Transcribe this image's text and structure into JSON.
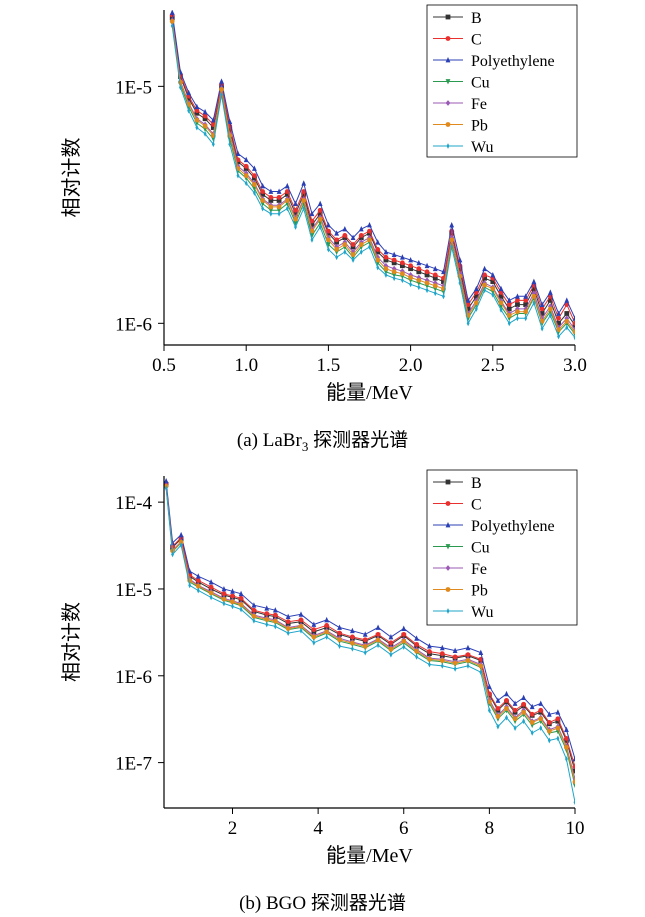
{
  "chart_data": [
    {
      "type": "line",
      "caption": "(a) LaBr",
      "caption_sub": "3",
      "caption_suffix": " 探测器光谱",
      "xlabel": "能量/MeV",
      "ylabel": "相对计数",
      "xlim": [
        0.5,
        3.0
      ],
      "ylim": [
        8.1e-07,
        2.1e-05
      ],
      "yscale": "log",
      "x_ticks": [
        "0.5",
        "1.0",
        "1.5",
        "2.0",
        "2.5",
        "3.0"
      ],
      "x_tick_values": [
        0.5,
        1.0,
        1.5,
        2.0,
        2.5,
        3.0
      ],
      "y_ticks": [
        "1E-6",
        "1E-5"
      ],
      "y_tick_values": [
        1e-06,
        1e-05
      ],
      "legend_position": "top-right",
      "x": [
        0.55,
        0.6,
        0.65,
        0.7,
        0.75,
        0.8,
        0.85,
        0.9,
        0.95,
        1.0,
        1.05,
        1.1,
        1.15,
        1.2,
        1.25,
        1.3,
        1.35,
        1.4,
        1.45,
        1.5,
        1.55,
        1.6,
        1.65,
        1.7,
        1.75,
        1.8,
        1.85,
        1.9,
        1.95,
        2.0,
        2.05,
        2.1,
        2.15,
        2.2,
        2.25,
        2.3,
        2.35,
        2.4,
        2.45,
        2.5,
        2.55,
        2.6,
        2.65,
        2.7,
        2.75,
        2.8,
        2.85,
        2.9,
        2.95,
        3.0
      ],
      "series": [
        {
          "name": "B",
          "color": "#333333",
          "marker": "square",
          "values": [
            1.95e-05,
            1.1e-05,
            8.9e-06,
            7.7e-06,
            7.3e-06,
            6.7e-06,
            1e-05,
            6.6e-06,
            4.8e-06,
            4.5e-06,
            4.1e-06,
            3.5e-06,
            3.3e-06,
            3.3e-06,
            3.5e-06,
            2.9e-06,
            3.5e-06,
            2.6e-06,
            2.9e-06,
            2.4e-06,
            2.2e-06,
            2.3e-06,
            2.1e-06,
            2.3e-06,
            2.4e-06,
            2e-06,
            1.85e-06,
            1.8e-06,
            1.75e-06,
            1.7e-06,
            1.65e-06,
            1.6e-06,
            1.55e-06,
            1.5e-06,
            2.4e-06,
            1.7e-06,
            1.15e-06,
            1.3e-06,
            1.55e-06,
            1.5e-06,
            1.3e-06,
            1.15e-06,
            1.2e-06,
            1.2e-06,
            1.4e-06,
            1.1e-06,
            1.25e-06,
            1e-06,
            1.1e-06,
            9.8e-07
          ]
        },
        {
          "name": "C",
          "color": "#e8312f",
          "marker": "circle",
          "values": [
            2e-05,
            1.12e-05,
            9.1e-06,
            7.9e-06,
            7.5e-06,
            6.9e-06,
            1.02e-05,
            6.8e-06,
            4.9e-06,
            4.6e-06,
            4.2e-06,
            3.6e-06,
            3.4e-06,
            3.4e-06,
            3.6e-06,
            3e-06,
            3.6e-06,
            2.7e-06,
            3e-06,
            2.45e-06,
            2.25e-06,
            2.35e-06,
            2.15e-06,
            2.35e-06,
            2.45e-06,
            2.05e-06,
            1.9e-06,
            1.85e-06,
            1.8e-06,
            1.75e-06,
            1.7e-06,
            1.65e-06,
            1.6e-06,
            1.55e-06,
            2.45e-06,
            1.75e-06,
            1.2e-06,
            1.35e-06,
            1.6e-06,
            1.55e-06,
            1.35e-06,
            1.2e-06,
            1.25e-06,
            1.25e-06,
            1.45e-06,
            1.15e-06,
            1.3e-06,
            1.05e-06,
            1.2e-06,
            1e-06
          ]
        },
        {
          "name": "Polyethylene",
          "color": "#2b3fb5",
          "marker": "triangle-up",
          "values": [
            2.05e-05,
            1.15e-05,
            9.4e-06,
            8.2e-06,
            7.8e-06,
            7.2e-06,
            1.05e-05,
            7.1e-06,
            5.2e-06,
            4.9e-06,
            4.5e-06,
            3.8e-06,
            3.6e-06,
            3.6e-06,
            3.8e-06,
            3.2e-06,
            3.9e-06,
            2.9e-06,
            3.2e-06,
            2.6e-06,
            2.4e-06,
            2.5e-06,
            2.3e-06,
            2.5e-06,
            2.6e-06,
            2.2e-06,
            2e-06,
            1.95e-06,
            1.9e-06,
            1.85e-06,
            1.8e-06,
            1.75e-06,
            1.7e-06,
            1.65e-06,
            2.6e-06,
            1.85e-06,
            1.25e-06,
            1.4e-06,
            1.7e-06,
            1.6e-06,
            1.4e-06,
            1.25e-06,
            1.3e-06,
            1.3e-06,
            1.5e-06,
            1.2e-06,
            1.35e-06,
            1.1e-06,
            1.25e-06,
            1.05e-06
          ]
        },
        {
          "name": "Cu",
          "color": "#2a9a50",
          "marker": "triangle-down",
          "values": [
            1.85e-05,
            1.02e-05,
            8.2e-06,
            7e-06,
            6.6e-06,
            6e-06,
            9.5e-06,
            6e-06,
            4.4e-06,
            4.1e-06,
            3.7e-06,
            3.2e-06,
            3e-06,
            3e-06,
            3.2e-06,
            2.65e-06,
            3.2e-06,
            2.35e-06,
            2.65e-06,
            2.15e-06,
            2e-06,
            2.1e-06,
            1.9e-06,
            2.1e-06,
            2.2e-06,
            1.8e-06,
            1.65e-06,
            1.6e-06,
            1.58e-06,
            1.52e-06,
            1.48e-06,
            1.44e-06,
            1.4e-06,
            1.36e-06,
            2.2e-06,
            1.55e-06,
            1.05e-06,
            1.2e-06,
            1.42e-06,
            1.36e-06,
            1.18e-06,
            1.05e-06,
            1.1e-06,
            1.1e-06,
            1.28e-06,
            1e-06,
            1.12e-06,
            9.2e-07,
            1e-06,
            9e-07
          ]
        },
        {
          "name": "Fe",
          "color": "#9b59b6",
          "marker": "diamond",
          "values": [
            1.9e-05,
            1.05e-05,
            8.5e-06,
            7.3e-06,
            6.9e-06,
            6.3e-06,
            9.8e-06,
            6.3e-06,
            4.6e-06,
            4.3e-06,
            3.9e-06,
            3.35e-06,
            3.15e-06,
            3.15e-06,
            3.35e-06,
            2.8e-06,
            3.35e-06,
            2.5e-06,
            2.8e-06,
            2.3e-06,
            2.1e-06,
            2.2e-06,
            2e-06,
            2.2e-06,
            2.3e-06,
            1.9e-06,
            1.75e-06,
            1.7e-06,
            1.66e-06,
            1.6e-06,
            1.56e-06,
            1.52e-06,
            1.48e-06,
            1.44e-06,
            2.3e-06,
            1.62e-06,
            1.1e-06,
            1.25e-06,
            1.48e-06,
            1.42e-06,
            1.24e-06,
            1.1e-06,
            1.15e-06,
            1.15e-06,
            1.34e-06,
            1.05e-06,
            1.18e-06,
            9.6e-07,
            1.05e-06,
            9.4e-07
          ]
        },
        {
          "name": "Pb",
          "color": "#e08a1e",
          "marker": "hexagon",
          "values": [
            1.88e-05,
            1.04e-05,
            8.4e-06,
            7.2e-06,
            6.8e-06,
            6.2e-06,
            9.7e-06,
            6.2e-06,
            4.5e-06,
            4.2e-06,
            3.85e-06,
            3.3e-06,
            3.1e-06,
            3.1e-06,
            3.3e-06,
            2.75e-06,
            3.3e-06,
            2.45e-06,
            2.75e-06,
            2.25e-06,
            2.05e-06,
            2.15e-06,
            1.95e-06,
            2.15e-06,
            2.25e-06,
            1.85e-06,
            1.7e-06,
            1.65e-06,
            1.62e-06,
            1.56e-06,
            1.52e-06,
            1.48e-06,
            1.44e-06,
            1.4e-06,
            2.25e-06,
            1.58e-06,
            1.08e-06,
            1.22e-06,
            1.45e-06,
            1.4e-06,
            1.22e-06,
            1.08e-06,
            1.12e-06,
            1.12e-06,
            1.3e-06,
            1.02e-06,
            1.15e-06,
            9.4e-07,
            1.02e-06,
            9.2e-07
          ]
        },
        {
          "name": "Wu",
          "color": "#1ea5c9",
          "marker": "star",
          "values": [
            1.8e-05,
            9.9e-06,
            7.9e-06,
            6.7e-06,
            6.3e-06,
            5.7e-06,
            9.2e-06,
            5.7e-06,
            4.2e-06,
            3.9e-06,
            3.55e-06,
            3.05e-06,
            2.9e-06,
            2.9e-06,
            3.05e-06,
            2.55e-06,
            3.05e-06,
            2.25e-06,
            2.55e-06,
            2.05e-06,
            1.9e-06,
            2e-06,
            1.85e-06,
            2e-06,
            2.1e-06,
            1.72e-06,
            1.6e-06,
            1.55e-06,
            1.52e-06,
            1.46e-06,
            1.42e-06,
            1.38e-06,
            1.34e-06,
            1.3e-06,
            2.1e-06,
            1.48e-06,
            1e-06,
            1.15e-06,
            1.38e-06,
            1.32e-06,
            1.14e-06,
            1e-06,
            1.05e-06,
            1.05e-06,
            1.22e-06,
            9.5e-07,
            1.08e-06,
            8.8e-07,
            9.6e-07,
            8.7e-07
          ]
        }
      ]
    },
    {
      "type": "line",
      "caption": "(b) BGO 探测器光谱",
      "xlabel": "能量/MeV",
      "ylabel": "相对计数",
      "xlim": [
        0.4,
        10.0
      ],
      "ylim": [
        3e-08,
        0.0002
      ],
      "yscale": "log",
      "x_ticks": [
        "2",
        "4",
        "6",
        "8",
        "10"
      ],
      "x_tick_values": [
        2,
        4,
        6,
        8,
        10
      ],
      "y_ticks": [
        "1E-7",
        "1E-6",
        "1E-5",
        "1E-4"
      ],
      "y_tick_values": [
        1e-07,
        1e-06,
        1e-05,
        0.0001
      ],
      "legend_position": "top-right",
      "x": [
        0.45,
        0.6,
        0.8,
        1.0,
        1.2,
        1.5,
        1.8,
        2.0,
        2.2,
        2.5,
        2.8,
        3.0,
        3.3,
        3.6,
        3.9,
        4.2,
        4.5,
        4.8,
        5.1,
        5.4,
        5.7,
        6.0,
        6.3,
        6.6,
        6.9,
        7.2,
        7.5,
        7.8,
        8.0,
        8.2,
        8.4,
        8.6,
        8.8,
        9.0,
        9.2,
        9.4,
        9.6,
        9.8,
        10.0
      ],
      "series": [
        {
          "name": "B",
          "color": "#333333",
          "marker": "square",
          "values": [
            0.00016,
            3e-05,
            3.8e-05,
            1.4e-05,
            1.2e-05,
            1e-05,
            8.5e-06,
            8e-06,
            7.5e-06,
            5.5e-06,
            5e-06,
            4.8e-06,
            4e-06,
            4.2e-06,
            3.2e-06,
            3.6e-06,
            3e-06,
            2.7e-06,
            2.5e-06,
            2.9e-06,
            2.3e-06,
            2.9e-06,
            2.2e-06,
            1.8e-06,
            1.7e-06,
            1.6e-06,
            1.7e-06,
            1.5e-06,
            6e-07,
            4e-07,
            5e-07,
            3.8e-07,
            4.5e-07,
            3.5e-07,
            3.8e-07,
            2.8e-07,
            3e-07,
            1.8e-07,
            8e-08
          ]
        },
        {
          "name": "C",
          "color": "#e8312f",
          "marker": "circle",
          "values": [
            0.000165,
            3.1e-05,
            3.9e-05,
            1.45e-05,
            1.25e-05,
            1.05e-05,
            8.8e-06,
            8.3e-06,
            7.8e-06,
            5.7e-06,
            5.2e-06,
            5e-06,
            4.2e-06,
            4.4e-06,
            3.4e-06,
            3.8e-06,
            3.1e-06,
            2.8e-06,
            2.6e-06,
            3e-06,
            2.4e-06,
            3e-06,
            2.3e-06,
            1.9e-06,
            1.8e-06,
            1.65e-06,
            1.75e-06,
            1.55e-06,
            6.2e-07,
            4.2e-07,
            5.2e-07,
            4e-07,
            4.7e-07,
            3.6e-07,
            4e-07,
            2.9e-07,
            3.2e-07,
            1.9e-07,
            9e-08
          ]
        },
        {
          "name": "Polyethylene",
          "color": "#2b3fb5",
          "marker": "triangle-up",
          "values": [
            0.000175,
            3.4e-05,
            4.2e-05,
            1.6e-05,
            1.4e-05,
            1.2e-05,
            1e-05,
            9.4e-06,
            8.8e-06,
            6.5e-06,
            6e-06,
            5.7e-06,
            4.8e-06,
            5.1e-06,
            3.9e-06,
            4.4e-06,
            3.6e-06,
            3.3e-06,
            3e-06,
            3.6e-06,
            2.8e-06,
            3.5e-06,
            2.7e-06,
            2.2e-06,
            2.1e-06,
            1.95e-06,
            2.1e-06,
            1.85e-06,
            7.5e-07,
            5.2e-07,
            6.2e-07,
            4.8e-07,
            5.6e-07,
            4.4e-07,
            4.8e-07,
            3.6e-07,
            3.8e-07,
            2.4e-07,
            1.1e-07
          ]
        },
        {
          "name": "Cu",
          "color": "#2a9a50",
          "marker": "triangle-down",
          "values": [
            0.00015,
            2.7e-05,
            3.4e-05,
            1.2e-05,
            1.05e-05,
            8.8e-06,
            7.4e-06,
            6.9e-06,
            6.4e-06,
            4.7e-06,
            4.3e-06,
            4.1e-06,
            3.4e-06,
            3.6e-06,
            2.7e-06,
            3.1e-06,
            2.5e-06,
            2.3e-06,
            2.1e-06,
            2.5e-06,
            1.95e-06,
            2.4e-06,
            1.85e-06,
            1.5e-06,
            1.45e-06,
            1.35e-06,
            1.45e-06,
            1.25e-06,
            4.8e-07,
            3.2e-07,
            4e-07,
            3e-07,
            3.6e-07,
            2.7e-07,
            3e-07,
            2.2e-07,
            2.3e-07,
            1.4e-07,
            5.5e-08
          ]
        },
        {
          "name": "Fe",
          "color": "#9b59b6",
          "marker": "diamond",
          "values": [
            0.000155,
            2.8e-05,
            3.5e-05,
            1.3e-05,
            1.1e-05,
            9.3e-06,
            7.8e-06,
            7.3e-06,
            6.8e-06,
            5e-06,
            4.6e-06,
            4.4e-06,
            3.6e-06,
            3.8e-06,
            2.9e-06,
            3.3e-06,
            2.7e-06,
            2.45e-06,
            2.25e-06,
            2.65e-06,
            2.1e-06,
            2.6e-06,
            2e-06,
            1.6e-06,
            1.55e-06,
            1.45e-06,
            1.55e-06,
            1.35e-06,
            5.3e-07,
            3.5e-07,
            4.4e-07,
            3.3e-07,
            4e-07,
            3e-07,
            3.3e-07,
            2.4e-07,
            2.6e-07,
            1.55e-07,
            6.5e-08
          ]
        },
        {
          "name": "Pb",
          "color": "#e08a1e",
          "marker": "hexagon",
          "values": [
            0.000152,
            2.75e-05,
            3.45e-05,
            1.25e-05,
            1.08e-05,
            9e-06,
            7.6e-06,
            7.1e-06,
            6.6e-06,
            4.85e-06,
            4.45e-06,
            4.25e-06,
            3.5e-06,
            3.7e-06,
            2.8e-06,
            3.2e-06,
            2.6e-06,
            2.38e-06,
            2.18e-06,
            2.58e-06,
            2.02e-06,
            2.5e-06,
            1.92e-06,
            1.55e-06,
            1.5e-06,
            1.4e-06,
            1.5e-06,
            1.3e-06,
            5e-07,
            3.4e-07,
            4.2e-07,
            3.2e-07,
            3.8e-07,
            2.9e-07,
            3.2e-07,
            2.3e-07,
            2.5e-07,
            1.5e-07,
            6e-08
          ]
        },
        {
          "name": "Wu",
          "color": "#1ea5c9",
          "marker": "star",
          "values": [
            0.000145,
            2.5e-05,
            3.2e-05,
            1.1e-05,
            9.6e-06,
            8e-06,
            6.8e-06,
            6.3e-06,
            5.8e-06,
            4.3e-06,
            3.9e-06,
            3.7e-06,
            3.1e-06,
            3.3e-06,
            2.4e-06,
            2.8e-06,
            2.2e-06,
            2.05e-06,
            1.85e-06,
            2.25e-06,
            1.75e-06,
            2.15e-06,
            1.65e-06,
            1.35e-06,
            1.3e-06,
            1.2e-06,
            1.3e-06,
            1.1e-06,
            4e-07,
            2.6e-07,
            3.3e-07,
            2.5e-07,
            3e-07,
            2.2e-07,
            2.5e-07,
            1.8e-07,
            1.9e-07,
            1.1e-07,
            3.5e-08
          ]
        }
      ]
    }
  ]
}
